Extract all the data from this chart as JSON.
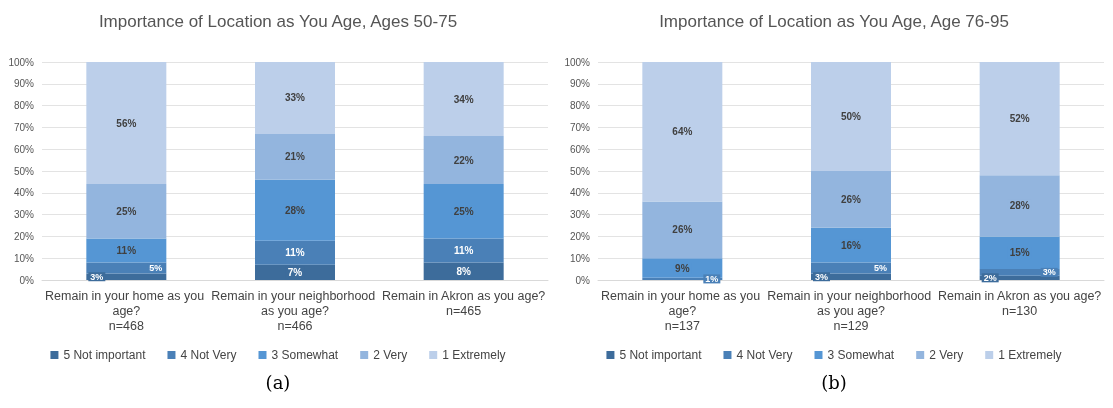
{
  "chart_data": [
    {
      "type": "bar",
      "stacked": true,
      "title": "Importance of Location as You Age, Ages 50-75",
      "categories": [
        "Remain in your home as you age?\nn=468",
        "Remain in your neighborhood as you age?\nn=466",
        "Remain in Akron as you age?\nn=465"
      ],
      "series": [
        {
          "name": "5 Not important",
          "color": "#3d6c9b",
          "values": [
            3,
            7,
            8
          ],
          "value_labels": [
            "3%",
            "7%",
            "8%"
          ]
        },
        {
          "name": "4 Not Very",
          "color": "#4a80b7",
          "values": [
            5,
            11,
            11
          ],
          "value_labels": [
            "5%",
            "11%",
            "11%"
          ]
        },
        {
          "name": "3 Somewhat",
          "color": "#5596d4",
          "values": [
            11,
            28,
            25
          ],
          "value_labels": [
            "11%",
            "28%",
            "25%"
          ]
        },
        {
          "name": "2 Very",
          "color": "#93b5de",
          "values": [
            25,
            21,
            22
          ],
          "value_labels": [
            "25%",
            "21%",
            "22%"
          ]
        },
        {
          "name": "1 Extremely",
          "color": "#bccfea",
          "values": [
            56,
            33,
            34
          ],
          "value_labels": [
            "56%",
            "33%",
            "34%"
          ]
        }
      ],
      "ylim": [
        0,
        100
      ],
      "yticks": [
        {
          "value": 0,
          "label": "0%"
        },
        {
          "value": 10,
          "label": "10%"
        },
        {
          "value": 20,
          "label": "20%"
        },
        {
          "value": 30,
          "label": "30%"
        },
        {
          "value": 40,
          "label": "40%"
        },
        {
          "value": 50,
          "label": "50%"
        },
        {
          "value": 60,
          "label": "60%"
        },
        {
          "value": 70,
          "label": "70%"
        },
        {
          "value": 80,
          "label": "80%"
        },
        {
          "value": 90,
          "label": "90%"
        },
        {
          "value": 100,
          "label": "100%"
        }
      ],
      "grid": "y",
      "legend": "bottom",
      "annotations": [
        "(a)"
      ]
    },
    {
      "type": "bar",
      "stacked": true,
      "title": "Importance of Location as You Age, Age 76-95",
      "categories": [
        "Remain in your home as you age?\nn=137",
        "Remain in your neighborhood as you age?\nn=129",
        "Remain in Akron as you age?\nn=130"
      ],
      "series": [
        {
          "name": "5 Not important",
          "color": "#3d6c9b",
          "values": [
            null,
            3,
            2
          ],
          "value_labels": [
            null,
            "3%",
            "2%"
          ]
        },
        {
          "name": "4 Not Very",
          "color": "#4a80b7",
          "values": [
            1,
            5,
            3
          ],
          "value_labels": [
            "1%",
            "5%",
            "3%"
          ]
        },
        {
          "name": "3 Somewhat",
          "color": "#5596d4",
          "values": [
            9,
            16,
            15
          ],
          "value_labels": [
            "9%",
            "16%",
            "15%"
          ]
        },
        {
          "name": "2 Very",
          "color": "#93b5de",
          "values": [
            26,
            26,
            28
          ],
          "value_labels": [
            "26%",
            "26%",
            "28%"
          ]
        },
        {
          "name": "1 Extremely",
          "color": "#bccfea",
          "values": [
            64,
            50,
            52
          ],
          "value_labels": [
            "64%",
            "50%",
            "52%"
          ]
        }
      ],
      "ylim": [
        0,
        100
      ],
      "yticks": [
        {
          "value": 0,
          "label": "0%"
        },
        {
          "value": 10,
          "label": "10%"
        },
        {
          "value": 20,
          "label": "20%"
        },
        {
          "value": 30,
          "label": "30%"
        },
        {
          "value": 40,
          "label": "40%"
        },
        {
          "value": 50,
          "label": "50%"
        },
        {
          "value": 60,
          "label": "60%"
        },
        {
          "value": 70,
          "label": "70%"
        },
        {
          "value": 80,
          "label": "80%"
        },
        {
          "value": 90,
          "label": "90%"
        },
        {
          "value": 100,
          "label": "100%"
        }
      ],
      "grid": "y",
      "legend": "bottom",
      "annotations": [
        "(b)"
      ]
    }
  ]
}
